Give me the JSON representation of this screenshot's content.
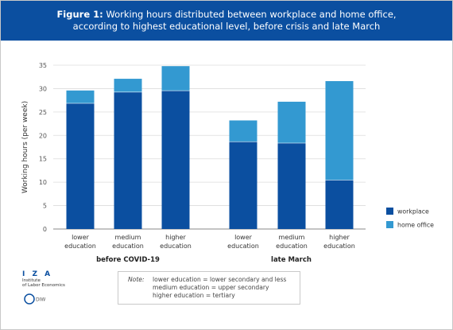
{
  "header": {
    "figure_label": "Figure 1:",
    "title_line1": "Working hours distributed between workplace and home office,",
    "title_line2": "according to highest educational level, before crisis and late March"
  },
  "chart_data": {
    "type": "bar",
    "stacked": true,
    "ylabel": "Working hours (per week)",
    "ylim": [
      0,
      35
    ],
    "yticks": [
      0,
      5,
      10,
      15,
      20,
      25,
      30,
      35
    ],
    "grid": true,
    "legend_position": "right",
    "groups": [
      {
        "label": "before COVID-19",
        "categories": [
          [
            "lower",
            "education"
          ],
          [
            "medium",
            "education"
          ],
          [
            "higher",
            "education"
          ]
        ]
      },
      {
        "label": "late March",
        "categories": [
          [
            "lower",
            "education"
          ],
          [
            "medium",
            "education"
          ],
          [
            "higher",
            "education"
          ]
        ]
      }
    ],
    "series": [
      {
        "name": "workplace",
        "color": "#0b4fa0",
        "values": [
          26.9,
          29.3,
          29.6,
          18.7,
          18.4,
          10.5
        ]
      },
      {
        "name": "home office",
        "color": "#3399d1",
        "values": [
          2.7,
          2.8,
          5.2,
          4.5,
          8.8,
          21.1
        ]
      }
    ]
  },
  "note": {
    "label": "Note:",
    "lines": [
      "lower education = lower secondary and less",
      "medium education = upper secondary",
      "higher education = tertiary"
    ]
  },
  "logo": {
    "name": "I Z A",
    "line1": "Institute",
    "line2": "of Labor Economics",
    "partner": "DIW"
  }
}
